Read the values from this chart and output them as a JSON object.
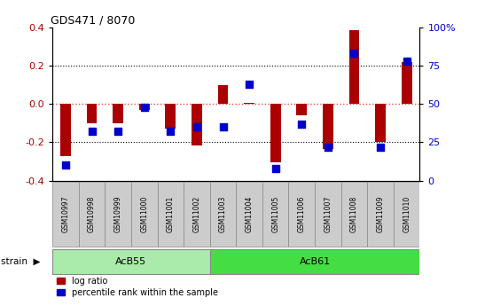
{
  "title": "GDS471 / 8070",
  "samples": [
    "GSM10997",
    "GSM10998",
    "GSM10999",
    "GSM11000",
    "GSM11001",
    "GSM11002",
    "GSM11003",
    "GSM11004",
    "GSM11005",
    "GSM11006",
    "GSM11007",
    "GSM11008",
    "GSM11009",
    "GSM11010"
  ],
  "log_ratio": [
    -0.27,
    -0.1,
    -0.1,
    -0.03,
    -0.13,
    -0.215,
    0.1,
    0.005,
    -0.305,
    -0.06,
    -0.235,
    0.385,
    -0.2,
    0.22
  ],
  "percentile": [
    10,
    32,
    32,
    48,
    32,
    35,
    35,
    63,
    8,
    37,
    22,
    83,
    22,
    78
  ],
  "groups": [
    {
      "label": "AcB55",
      "start": 0,
      "end": 5,
      "color": "#AAEAAA"
    },
    {
      "label": "AcB61",
      "start": 6,
      "end": 13,
      "color": "#44DD44"
    }
  ],
  "ylim_left": [
    -0.4,
    0.4
  ],
  "ylim_right": [
    0,
    100
  ],
  "yticks_left": [
    -0.4,
    -0.2,
    0.0,
    0.2,
    0.4
  ],
  "yticks_right": [
    0,
    25,
    50,
    75,
    100
  ],
  "ytick_labels_right": [
    "0",
    "25",
    "50",
    "75",
    "100%"
  ],
  "bar_color": "#AA0000",
  "dot_color": "#0000CC",
  "zero_line_color": "#FF4444",
  "background_color": "#FFFFFF",
  "strain_label": "strain",
  "legend_entries": [
    "log ratio",
    "percentile rank within the sample"
  ],
  "bar_width": 0.4,
  "dot_size": 40
}
